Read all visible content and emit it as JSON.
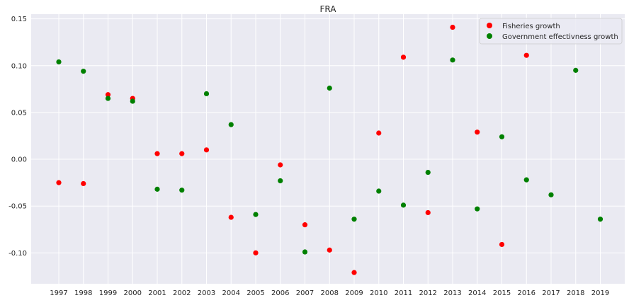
{
  "chart_data": {
    "type": "scatter",
    "title": "FRA",
    "xlabel": "",
    "ylabel": "",
    "x_categories": [
      "1997",
      "1998",
      "1999",
      "2000",
      "2001",
      "2002",
      "2003",
      "2004",
      "2005",
      "2006",
      "2007",
      "2008",
      "2009",
      "2010",
      "2011",
      "2012",
      "2013",
      "2014",
      "2015",
      "2016",
      "2017",
      "2018",
      "2019"
    ],
    "ylim": [
      -0.133,
      0.155
    ],
    "yticks": [
      "0.15",
      "0.10",
      "0.05",
      "0.00",
      "-0.05",
      "-0.10"
    ],
    "ytick_values": [
      0.15,
      0.1,
      0.05,
      0.0,
      -0.05,
      -0.1
    ],
    "grid": true,
    "legend_position": "top-right",
    "series": [
      {
        "name": "Fisheries growth",
        "color": "#ff0000",
        "points": [
          {
            "x": "1997",
            "y": -0.025
          },
          {
            "x": "1998",
            "y": -0.026
          },
          {
            "x": "1999",
            "y": 0.069
          },
          {
            "x": "2000",
            "y": 0.065
          },
          {
            "x": "2001",
            "y": 0.006
          },
          {
            "x": "2002",
            "y": 0.006
          },
          {
            "x": "2003",
            "y": 0.01
          },
          {
            "x": "2004",
            "y": -0.062
          },
          {
            "x": "2005",
            "y": -0.1
          },
          {
            "x": "2006",
            "y": -0.006
          },
          {
            "x": "2007",
            "y": -0.07
          },
          {
            "x": "2008",
            "y": -0.097
          },
          {
            "x": "2009",
            "y": -0.121
          },
          {
            "x": "2010",
            "y": 0.028
          },
          {
            "x": "2011",
            "y": 0.109
          },
          {
            "x": "2012",
            "y": -0.057
          },
          {
            "x": "2013",
            "y": 0.141
          },
          {
            "x": "2014",
            "y": 0.029
          },
          {
            "x": "2015",
            "y": -0.091
          },
          {
            "x": "2016",
            "y": 0.111
          }
        ]
      },
      {
        "name": "Government effectivness growth",
        "color": "#008000",
        "points": [
          {
            "x": "1997",
            "y": 0.104
          },
          {
            "x": "1998",
            "y": 0.094
          },
          {
            "x": "1999",
            "y": 0.065
          },
          {
            "x": "2000",
            "y": 0.062
          },
          {
            "x": "2001",
            "y": -0.032
          },
          {
            "x": "2002",
            "y": -0.033
          },
          {
            "x": "2003",
            "y": 0.07
          },
          {
            "x": "2004",
            "y": 0.037
          },
          {
            "x": "2005",
            "y": -0.059
          },
          {
            "x": "2006",
            "y": -0.023
          },
          {
            "x": "2007",
            "y": -0.099
          },
          {
            "x": "2008",
            "y": 0.076
          },
          {
            "x": "2009",
            "y": -0.064
          },
          {
            "x": "2010",
            "y": -0.034
          },
          {
            "x": "2011",
            "y": -0.049
          },
          {
            "x": "2012",
            "y": -0.014
          },
          {
            "x": "2013",
            "y": 0.106
          },
          {
            "x": "2014",
            "y": -0.053
          },
          {
            "x": "2015",
            "y": 0.024
          },
          {
            "x": "2016",
            "y": -0.022
          },
          {
            "x": "2017",
            "y": -0.038
          },
          {
            "x": "2018",
            "y": 0.095
          },
          {
            "x": "2019",
            "y": -0.064
          }
        ]
      }
    ]
  },
  "style": {
    "plot_background": "#eaeaf2",
    "grid_color": "#ffffff"
  }
}
